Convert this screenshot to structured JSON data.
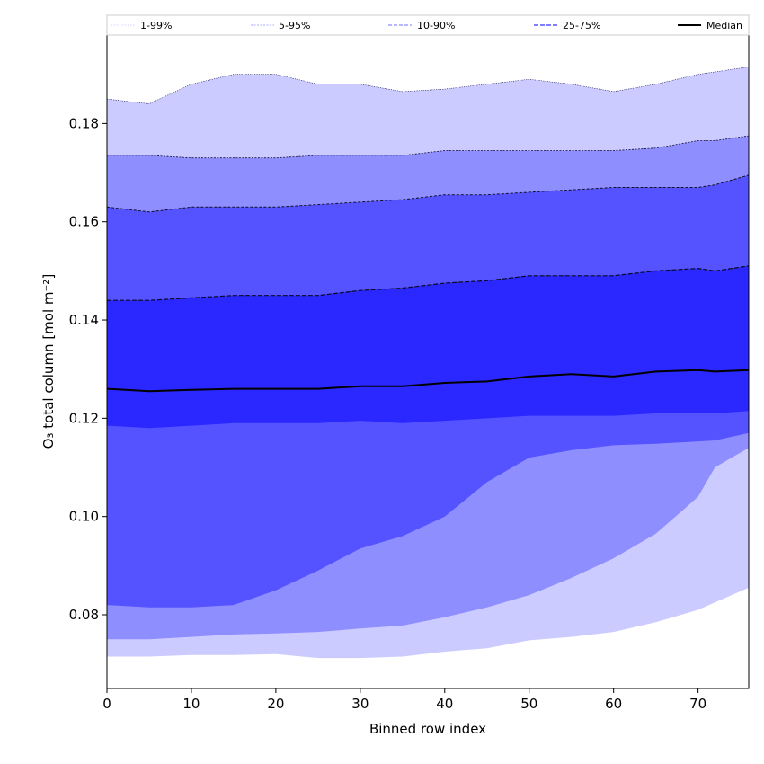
{
  "chart_data": {
    "type": "area",
    "title": "",
    "xlabel": "Binned row index",
    "ylabel": "O₃ total column [mol m⁻²]",
    "xlim": [
      0,
      76
    ],
    "ylim": [
      0.065,
      0.198
    ],
    "xticks": [
      0,
      10,
      20,
      30,
      40,
      50,
      60,
      70
    ],
    "yticks": [
      0.08,
      0.1,
      0.12,
      0.14,
      0.16,
      0.18
    ],
    "ytick_labels": [
      "0.08",
      "0.10",
      "0.12",
      "0.14",
      "0.16",
      "0.18"
    ],
    "legend_position": "top",
    "legend": [
      "1-99%",
      "5-95%",
      "10-90%",
      "25-75%",
      "Median"
    ],
    "colors": {
      "band_1_99": "#cccbff",
      "band_5_95": "#8f8eff",
      "band_10_90": "#5453ff",
      "band_25_75": "#2a27ff",
      "median": "#000000",
      "legend_line_1_99": "#d6d6ff",
      "legend_line_5_95": "#a8a8ff",
      "legend_line_10_90": "#8f8eff",
      "legend_line_25_75": "#5453ff"
    },
    "x": [
      0,
      5,
      10,
      15,
      20,
      25,
      30,
      35,
      40,
      45,
      50,
      55,
      60,
      65,
      70,
      72,
      76
    ],
    "series": [
      {
        "name": "p99",
        "values": [
          0.185,
          0.184,
          0.188,
          0.19,
          0.19,
          0.188,
          0.188,
          0.1865,
          0.187,
          0.188,
          0.189,
          0.188,
          0.1865,
          0.188,
          0.19,
          0.1905,
          0.1915
        ]
      },
      {
        "name": "p95",
        "values": [
          0.1735,
          0.1735,
          0.173,
          0.173,
          0.173,
          0.1735,
          0.1735,
          0.1735,
          0.1745,
          0.1745,
          0.1745,
          0.1745,
          0.1745,
          0.175,
          0.1765,
          0.1765,
          0.1775
        ]
      },
      {
        "name": "p90",
        "values": [
          0.163,
          0.162,
          0.163,
          0.163,
          0.163,
          0.1635,
          0.164,
          0.1645,
          0.1655,
          0.1655,
          0.166,
          0.1665,
          0.167,
          0.167,
          0.167,
          0.1675,
          0.1695
        ]
      },
      {
        "name": "p75",
        "values": [
          0.144,
          0.144,
          0.1445,
          0.145,
          0.145,
          0.145,
          0.146,
          0.1465,
          0.1475,
          0.148,
          0.149,
          0.149,
          0.149,
          0.15,
          0.1505,
          0.15,
          0.151
        ]
      },
      {
        "name": "Median",
        "values": [
          0.126,
          0.1255,
          0.1258,
          0.126,
          0.126,
          0.126,
          0.1265,
          0.1265,
          0.1272,
          0.1275,
          0.1285,
          0.129,
          0.1285,
          0.1295,
          0.1298,
          0.1295,
          0.1298
        ]
      },
      {
        "name": "p25",
        "values": [
          0.1185,
          0.118,
          0.1185,
          0.119,
          0.119,
          0.119,
          0.1195,
          0.119,
          0.1195,
          0.12,
          0.1205,
          0.1205,
          0.1205,
          0.121,
          0.121,
          0.121,
          0.1215
        ]
      },
      {
        "name": "p10",
        "values": [
          0.082,
          0.0815,
          0.0815,
          0.082,
          0.085,
          0.089,
          0.0935,
          0.096,
          0.1,
          0.107,
          0.112,
          0.1135,
          0.1145,
          0.1148,
          0.1153,
          0.1155,
          0.117
        ]
      },
      {
        "name": "p5",
        "values": [
          0.075,
          0.075,
          0.0755,
          0.076,
          0.0762,
          0.0765,
          0.0772,
          0.0778,
          0.0795,
          0.0815,
          0.084,
          0.0875,
          0.0915,
          0.0965,
          0.104,
          0.11,
          0.114
        ]
      },
      {
        "name": "p1",
        "values": [
          0.0715,
          0.0715,
          0.0718,
          0.0718,
          0.072,
          0.0712,
          0.0712,
          0.0715,
          0.0725,
          0.0732,
          0.0748,
          0.0755,
          0.0765,
          0.0785,
          0.081,
          0.0825,
          0.0855
        ]
      }
    ]
  }
}
